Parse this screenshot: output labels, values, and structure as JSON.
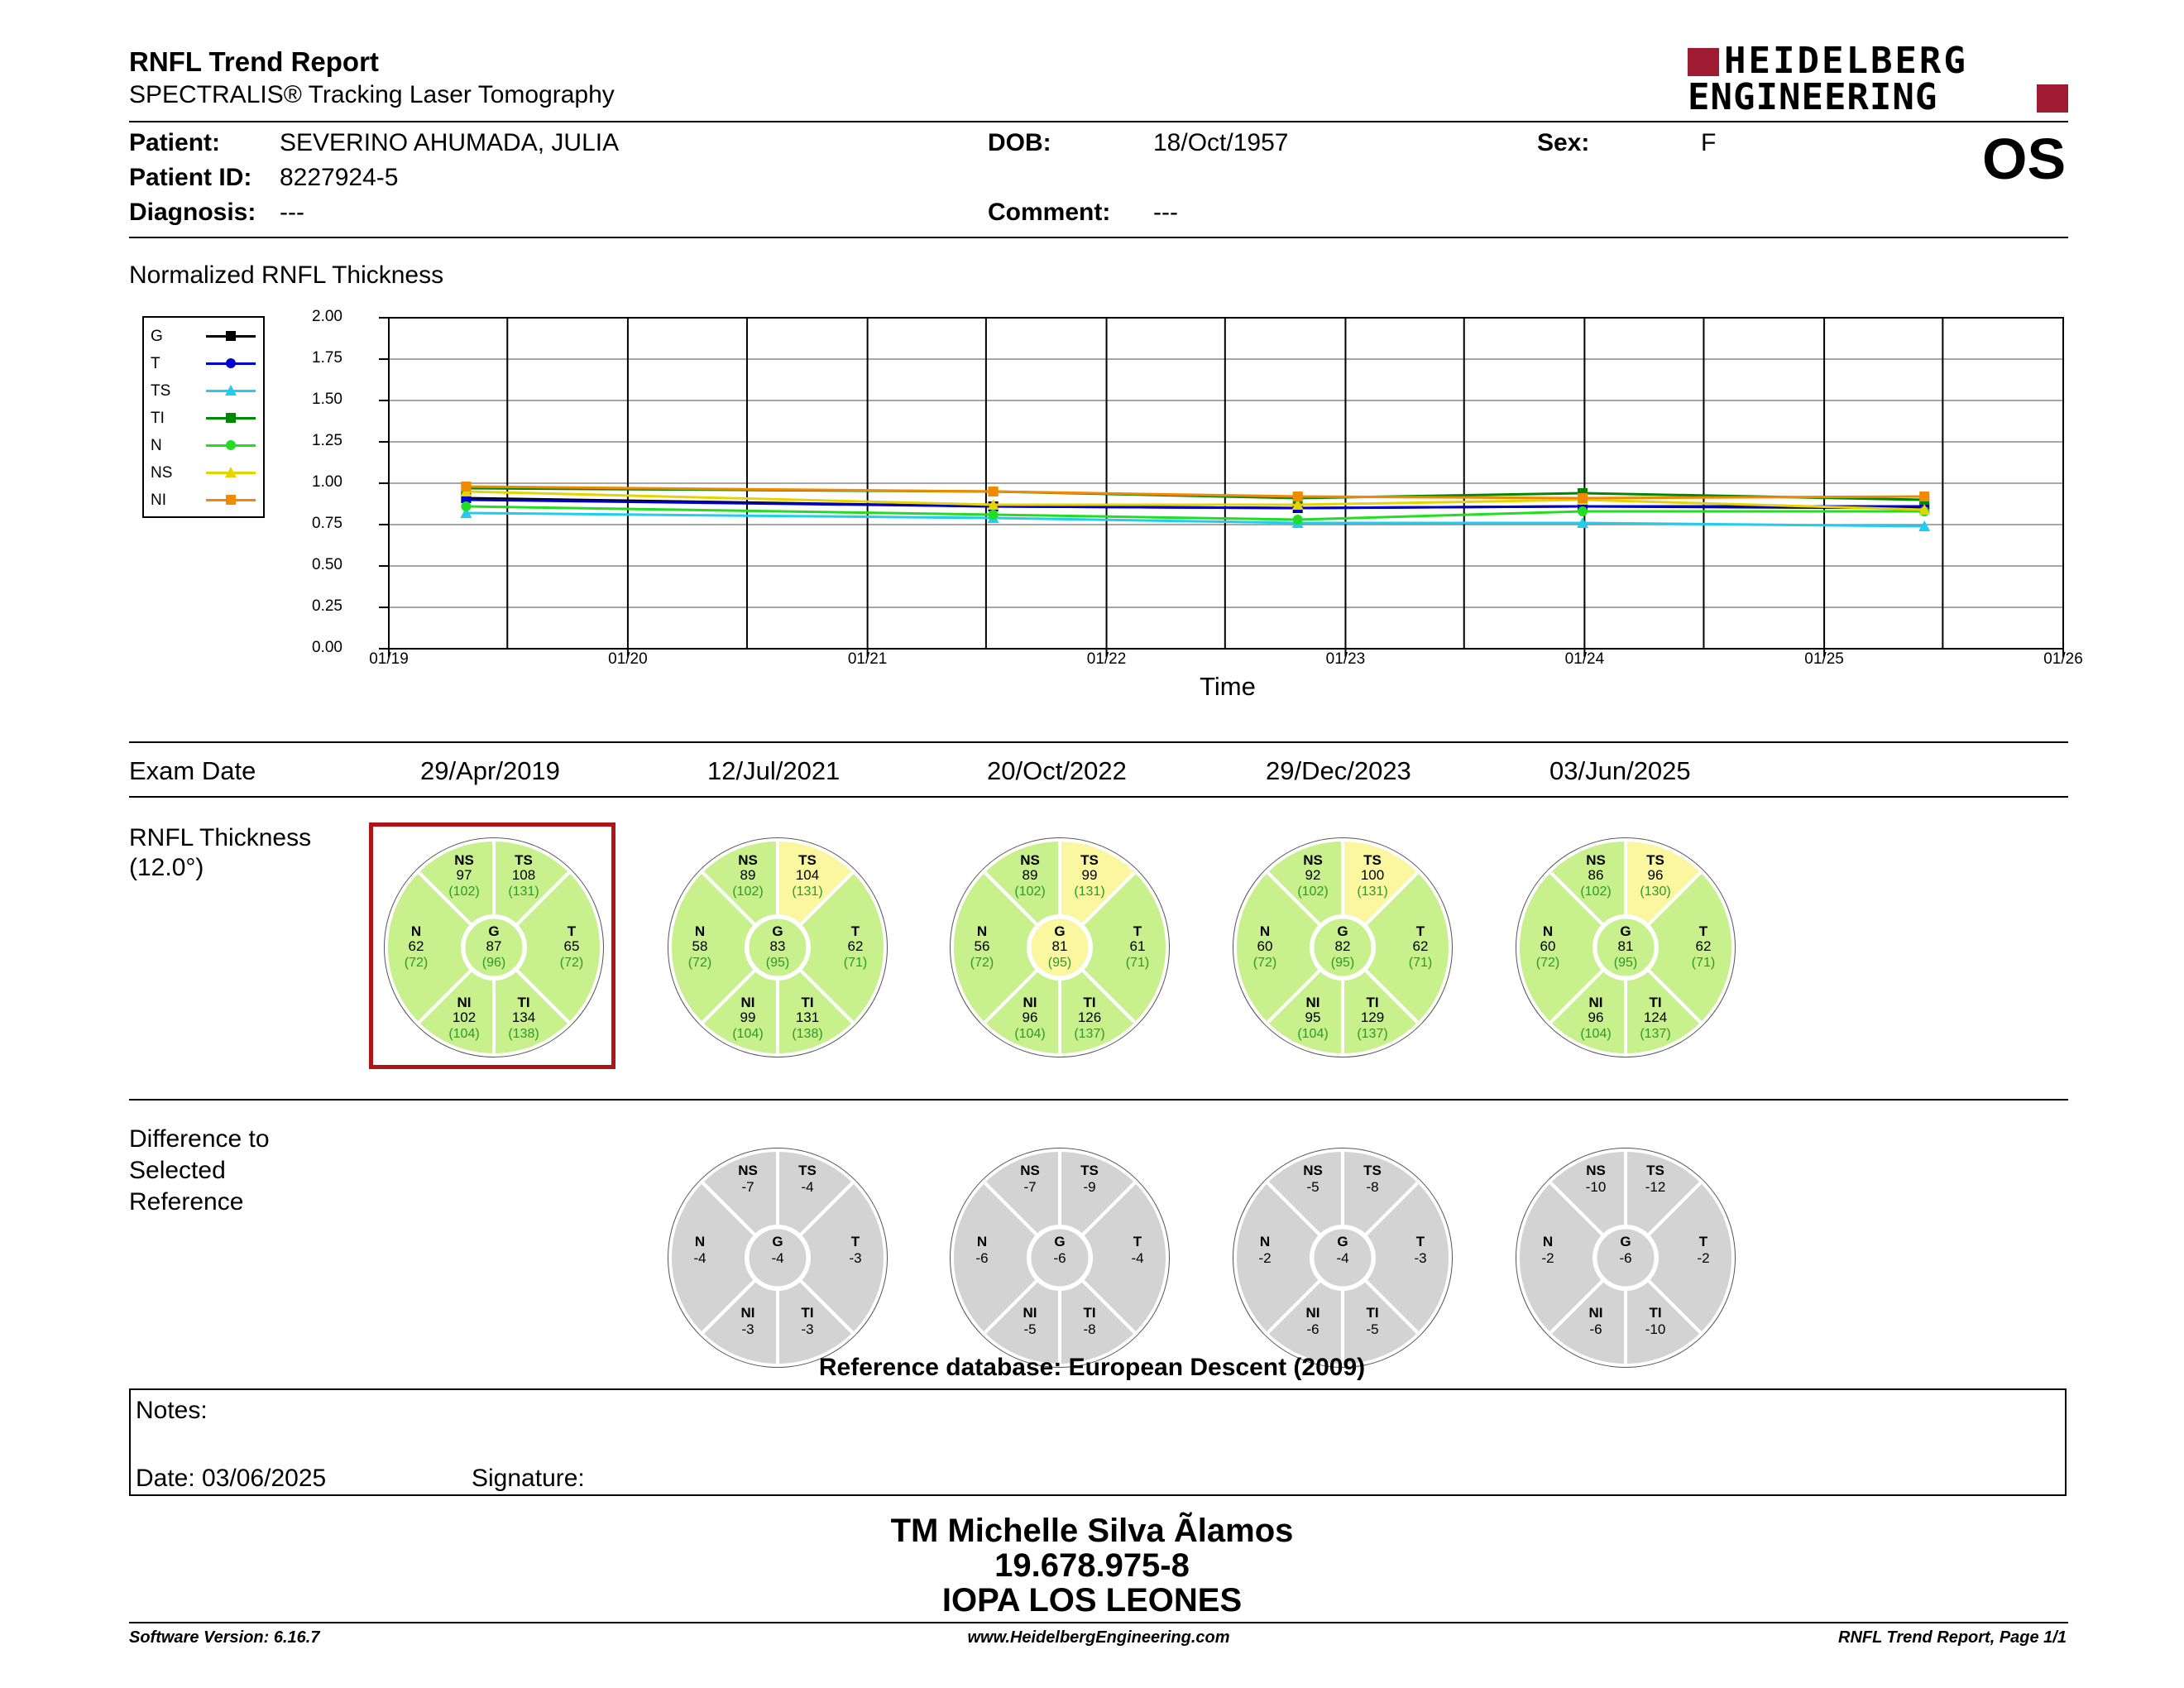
{
  "header": {
    "title": "RNFL Trend Report",
    "subtitle": "SPECTRALIS® Tracking Laser Tomography",
    "logo_line1": "HEIDELBERG",
    "logo_line2": "ENGINEERING",
    "eye": "OS"
  },
  "patient": {
    "patient_label": "Patient:",
    "patient_value": "SEVERINO AHUMADA, JULIA",
    "dob_label": "DOB:",
    "dob_value": "18/Oct/1957",
    "sex_label": "Sex:",
    "sex_value": "F",
    "id_label": "Patient ID:",
    "id_value": "8227924-5",
    "diagnosis_label": "Diagnosis:",
    "diagnosis_value": "---",
    "comment_label": "Comment:",
    "comment_value": "---"
  },
  "chart_data": {
    "type": "line",
    "title": "Normalized RNFL Thickness",
    "xlabel": "Time",
    "ylabel": "",
    "ylim": [
      0,
      2
    ],
    "yticks": [
      "0.00",
      "0.25",
      "0.50",
      "0.75",
      "1.00",
      "1.25",
      "1.50",
      "1.75",
      "2.00"
    ],
    "xticks": [
      "01/19",
      "01/20",
      "01/21",
      "01/22",
      "01/23",
      "01/24",
      "01/25",
      "01/26"
    ],
    "xlim": [
      "2019-01-01",
      "2026-01-01"
    ],
    "grid": true,
    "legend_position": "left",
    "x": [
      "2019-04-29",
      "2021-07-12",
      "2022-10-20",
      "2023-12-29",
      "2025-06-03"
    ],
    "series": [
      {
        "name": "G",
        "color": "#000000",
        "marker": "square",
        "values": [
          0.91,
          0.86,
          0.85,
          0.86,
          0.85
        ]
      },
      {
        "name": "T",
        "color": "#0000cc",
        "marker": "circle",
        "values": [
          0.9,
          0.86,
          0.85,
          0.86,
          0.86
        ]
      },
      {
        "name": "TS",
        "color": "#22ccee",
        "marker": "triangle",
        "values": [
          0.82,
          0.79,
          0.76,
          0.76,
          0.74
        ]
      },
      {
        "name": "TI",
        "color": "#008800",
        "marker": "square",
        "values": [
          0.97,
          0.95,
          0.91,
          0.94,
          0.9
        ]
      },
      {
        "name": "N",
        "color": "#22dd22",
        "marker": "circle",
        "values": [
          0.86,
          0.81,
          0.78,
          0.83,
          0.83
        ]
      },
      {
        "name": "NS",
        "color": "#e6d400",
        "marker": "triangle",
        "values": [
          0.95,
          0.87,
          0.87,
          0.9,
          0.84
        ]
      },
      {
        "name": "NI",
        "color": "#f08a00",
        "marker": "square",
        "values": [
          0.98,
          0.95,
          0.92,
          0.91,
          0.92
        ]
      }
    ]
  },
  "exams": {
    "exam_date_label": "Exam Date",
    "dates": [
      "29/Apr/2019",
      "12/Jul/2021",
      "20/Oct/2022",
      "29/Dec/2023",
      "03/Jun/2025"
    ],
    "thickness_label_line1": "RNFL Thickness",
    "thickness_label_line2": "(12.0°)",
    "difference_label_line1": "Difference to",
    "difference_label_line2": "Selected",
    "difference_label_line3": "Reference",
    "colors": {
      "green": "#c8f08c",
      "yellow": "#fbf6a0",
      "gray": "#d3d3d3",
      "normal_text": "#2a9a2a"
    },
    "thickness": [
      {
        "NS": [
          "97",
          "(102)",
          "green"
        ],
        "TS": [
          "108",
          "(131)",
          "green"
        ],
        "N": [
          "62",
          "(72)",
          "green"
        ],
        "G": [
          "87",
          "(96)",
          "green"
        ],
        "T": [
          "65",
          "(72)",
          "green"
        ],
        "NI": [
          "102",
          "(104)",
          "green"
        ],
        "TI": [
          "134",
          "(138)",
          "green"
        ]
      },
      {
        "NS": [
          "89",
          "(102)",
          "green"
        ],
        "TS": [
          "104",
          "(131)",
          "yellow"
        ],
        "N": [
          "58",
          "(72)",
          "green"
        ],
        "G": [
          "83",
          "(95)",
          "green"
        ],
        "T": [
          "62",
          "(71)",
          "green"
        ],
        "NI": [
          "99",
          "(104)",
          "green"
        ],
        "TI": [
          "131",
          "(138)",
          "green"
        ]
      },
      {
        "NS": [
          "89",
          "(102)",
          "green"
        ],
        "TS": [
          "99",
          "(131)",
          "yellow"
        ],
        "N": [
          "56",
          "(72)",
          "green"
        ],
        "G": [
          "81",
          "(95)",
          "yellow"
        ],
        "T": [
          "61",
          "(71)",
          "green"
        ],
        "NI": [
          "96",
          "(104)",
          "green"
        ],
        "TI": [
          "126",
          "(137)",
          "green"
        ]
      },
      {
        "NS": [
          "92",
          "(102)",
          "green"
        ],
        "TS": [
          "100",
          "(131)",
          "yellow"
        ],
        "N": [
          "60",
          "(72)",
          "green"
        ],
        "G": [
          "82",
          "(95)",
          "green"
        ],
        "T": [
          "62",
          "(71)",
          "green"
        ],
        "NI": [
          "95",
          "(104)",
          "green"
        ],
        "TI": [
          "129",
          "(137)",
          "green"
        ]
      },
      {
        "NS": [
          "86",
          "(102)",
          "green"
        ],
        "TS": [
          "96",
          "(130)",
          "yellow"
        ],
        "N": [
          "60",
          "(72)",
          "green"
        ],
        "G": [
          "81",
          "(95)",
          "green"
        ],
        "T": [
          "62",
          "(71)",
          "green"
        ],
        "NI": [
          "96",
          "(104)",
          "green"
        ],
        "TI": [
          "124",
          "(137)",
          "green"
        ]
      }
    ],
    "difference": [
      null,
      {
        "NS": "-7",
        "TS": "-4",
        "N": "-4",
        "G": "-4",
        "T": "-3",
        "NI": "-3",
        "TI": "-3"
      },
      {
        "NS": "-7",
        "TS": "-9",
        "N": "-6",
        "G": "-6",
        "T": "-4",
        "NI": "-5",
        "TI": "-8"
      },
      {
        "NS": "-5",
        "TS": "-8",
        "N": "-2",
        "G": "-4",
        "T": "-3",
        "NI": "-6",
        "TI": "-5"
      },
      {
        "NS": "-10",
        "TS": "-12",
        "N": "-2",
        "G": "-6",
        "T": "-2",
        "NI": "-6",
        "TI": "-10"
      }
    ],
    "reference_db": "Reference database: European Descent (2009)"
  },
  "notes": {
    "notes_label": "Notes:",
    "date_label": "Date: 03/06/2025",
    "signature_label": "Signature:"
  },
  "signature_block": {
    "name": "TM Michelle Silva Ãlamos",
    "rut": "19.678.975-8",
    "institution": "IOPA LOS LEONES"
  },
  "footer": {
    "software": "Software Version: 6.16.7",
    "website": "www.HeidelbergEngineering.com",
    "page": "RNFL Trend Report, Page 1/1"
  }
}
